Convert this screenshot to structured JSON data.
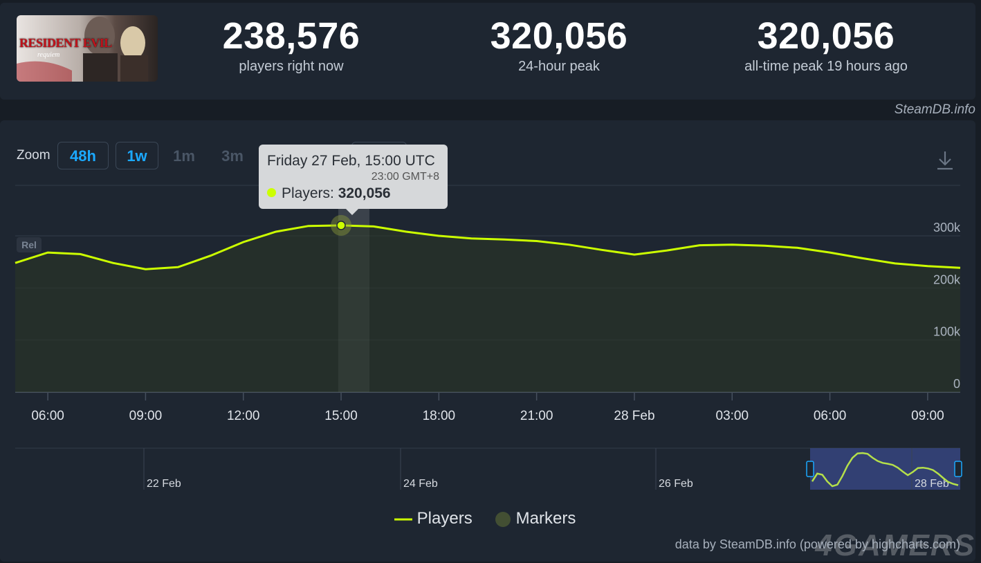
{
  "header": {
    "cover_title": "RESIDENT EVIL",
    "cover_subtitle": "requiem",
    "stats": [
      {
        "value": "238,576",
        "label": "players right now"
      },
      {
        "value": "320,056",
        "label": "24-hour peak"
      },
      {
        "value": "320,056",
        "label": "all-time peak 19 hours ago"
      }
    ],
    "credit": "SteamDB.info"
  },
  "zoom": {
    "label": "Zoom",
    "buttons": [
      {
        "label": "48h",
        "active": true
      },
      {
        "label": "1w",
        "active": true
      },
      {
        "label": "1m",
        "active": false
      },
      {
        "label": "3m",
        "active": false
      },
      {
        "label": "max",
        "active": true
      }
    ]
  },
  "rel_badge": "Rel",
  "tooltip": {
    "date": "Friday 27 Feb, 15:00 UTC",
    "timezone": "23:00 GMT+8",
    "series_label": "Players:",
    "value": "320,056"
  },
  "chart_data": {
    "type": "line",
    "title": "",
    "xlabel": "",
    "ylabel": "",
    "x_ticks": [
      "06:00",
      "09:00",
      "12:00",
      "15:00",
      "18:00",
      "21:00",
      "28 Feb",
      "03:00",
      "06:00",
      "09:00"
    ],
    "y_ticks": [
      "0",
      "100k",
      "200k",
      "300k"
    ],
    "ylim": [
      0,
      400000
    ],
    "grid": true,
    "legend_position": "bottom",
    "series": [
      {
        "name": "Players",
        "color": "#ccff00",
        "x": [
          "27 Feb 05:00",
          "27 Feb 06:00",
          "27 Feb 07:00",
          "27 Feb 08:00",
          "27 Feb 09:00",
          "27 Feb 10:00",
          "27 Feb 11:00",
          "27 Feb 12:00",
          "27 Feb 13:00",
          "27 Feb 14:00",
          "27 Feb 15:00",
          "27 Feb 16:00",
          "27 Feb 17:00",
          "27 Feb 18:00",
          "27 Feb 19:00",
          "27 Feb 20:00",
          "27 Feb 21:00",
          "27 Feb 22:00",
          "27 Feb 23:00",
          "28 Feb 00:00",
          "28 Feb 01:00",
          "28 Feb 02:00",
          "28 Feb 03:00",
          "28 Feb 04:00",
          "28 Feb 05:00",
          "28 Feb 06:00",
          "28 Feb 07:00",
          "28 Feb 08:00",
          "28 Feb 09:00",
          "28 Feb 10:00"
        ],
        "values": [
          248000,
          268000,
          265000,
          248000,
          236000,
          240000,
          262000,
          288000,
          308000,
          319000,
          320056,
          318000,
          308000,
          300000,
          295000,
          293000,
          290000,
          283000,
          273000,
          264000,
          272000,
          282000,
          283000,
          281000,
          277000,
          268000,
          257000,
          247000,
          242000,
          238576
        ]
      }
    ],
    "highlight": {
      "x": "27 Feb 15:00",
      "value": 320056
    },
    "navigator": {
      "labels": [
        "22 Feb",
        "24 Feb",
        "26 Feb",
        "28 Feb"
      ]
    },
    "legend": [
      {
        "name": "Players",
        "color": "#ccff00",
        "symbol": "line"
      },
      {
        "name": "Markers",
        "color": "#434f33",
        "symbol": "circle"
      }
    ]
  },
  "footer": {
    "credit": "data by SteamDB.info (powered by highcharts.com)",
    "watermark": "4GAMERS"
  }
}
